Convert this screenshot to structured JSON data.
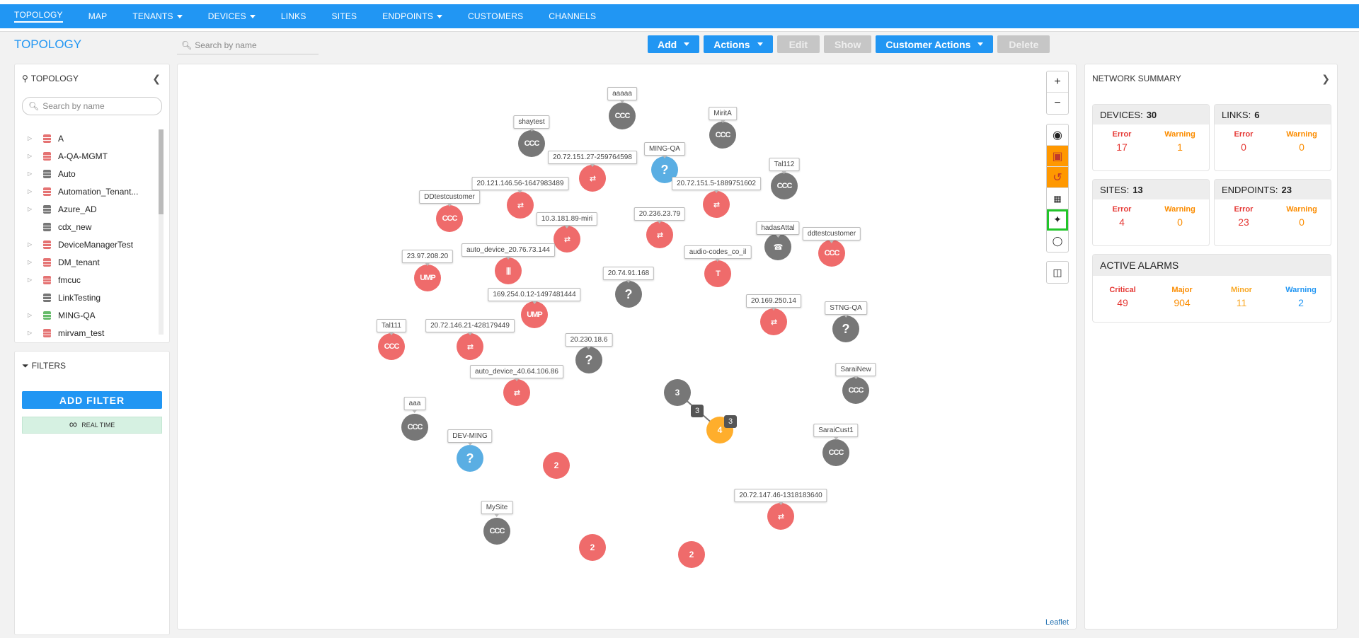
{
  "nav": {
    "items": [
      {
        "label": "TOPOLOGY",
        "dropdown": false,
        "active": true
      },
      {
        "label": "MAP",
        "dropdown": false
      },
      {
        "label": "TENANTS",
        "dropdown": true
      },
      {
        "label": "DEVICES",
        "dropdown": true
      },
      {
        "label": "LINKS",
        "dropdown": false
      },
      {
        "label": "SITES",
        "dropdown": false
      },
      {
        "label": "ENDPOINTS",
        "dropdown": true
      },
      {
        "label": "CUSTOMERS",
        "dropdown": false
      },
      {
        "label": "CHANNELS",
        "dropdown": false
      }
    ]
  },
  "header": {
    "title": "TOPOLOGY",
    "search_placeholder": "Search by name"
  },
  "toolbar": {
    "add": "Add",
    "actions": "Actions",
    "edit": "Edit",
    "show": "Show",
    "customer_actions": "Customer Actions",
    "delete": "Delete"
  },
  "tree": {
    "title": "TOPOLOGY",
    "search_placeholder": "Search by name",
    "items": [
      {
        "label": "A",
        "color": "red",
        "expandable": true
      },
      {
        "label": "A-QA-MGMT",
        "color": "red",
        "expandable": true
      },
      {
        "label": "Auto",
        "color": "gray",
        "expandable": true
      },
      {
        "label": "Automation_Tenant...",
        "color": "red",
        "expandable": true
      },
      {
        "label": "Azure_AD",
        "color": "gray",
        "expandable": true
      },
      {
        "label": "cdx_new",
        "color": "gray",
        "expandable": false
      },
      {
        "label": "DeviceManagerTest",
        "color": "red",
        "expandable": true
      },
      {
        "label": "DM_tenant",
        "color": "red",
        "expandable": true
      },
      {
        "label": "fmcuc",
        "color": "red",
        "expandable": true
      },
      {
        "label": "LinkTesting",
        "color": "gray",
        "expandable": false
      },
      {
        "label": "MING-QA",
        "color": "green",
        "expandable": true
      },
      {
        "label": "mirvam_test",
        "color": "red",
        "expandable": true
      }
    ]
  },
  "filters": {
    "title": "FILTERS",
    "add_filter": "ADD FILTER",
    "realtime": "REAL TIME"
  },
  "map": {
    "attribution": "Leaflet",
    "controls": [
      "zoom-in",
      "zoom-out",
      "locate",
      "save",
      "undo",
      "grid",
      "magic-wand",
      "hide",
      "layout"
    ],
    "nodes": [
      {
        "label": "aaaaa",
        "color": "gray",
        "glyph": "CCC"
      },
      {
        "label": "shaytest",
        "color": "gray",
        "glyph": "CCC"
      },
      {
        "label": "MiritA",
        "color": "gray",
        "glyph": "CCC"
      },
      {
        "label": "MING-QA",
        "color": "blue",
        "glyph": "?"
      },
      {
        "label": "20.72.151.27-259764598",
        "color": "red",
        "glyph": "⇄"
      },
      {
        "label": "Tal112",
        "color": "gray",
        "glyph": "CCC"
      },
      {
        "label": "20.121.146.56-1647983489",
        "color": "red",
        "glyph": "⇄"
      },
      {
        "label": "20.72.151.5-1889751602",
        "color": "red",
        "glyph": "⇄"
      },
      {
        "label": "DDtestcustomer",
        "color": "red",
        "glyph": "CCC"
      },
      {
        "label": "10.3.181.89-miri",
        "color": "red",
        "glyph": "⇄"
      },
      {
        "label": "20.236.23.79",
        "color": "red",
        "glyph": "⇄"
      },
      {
        "label": "hadasAttal",
        "color": "gray",
        "glyph": "☎"
      },
      {
        "label": "ddtestcustomer",
        "color": "red",
        "glyph": "CCC"
      },
      {
        "label": "auto_device_20.76.73.144",
        "color": "red",
        "glyph": "|||"
      },
      {
        "label": "23.97.208.20",
        "color": "red",
        "glyph": "UMP"
      },
      {
        "label": "audio-codes_co_il",
        "color": "red",
        "glyph": "T"
      },
      {
        "label": "20.74.91.168",
        "color": "gray",
        "glyph": "?"
      },
      {
        "label": "169.254.0.12-1497481444",
        "color": "red",
        "glyph": "UMP"
      },
      {
        "label": "20.169.250.14",
        "color": "red",
        "glyph": "⇄"
      },
      {
        "label": "STNG-QA",
        "color": "gray",
        "glyph": "?"
      },
      {
        "label": "Tal111",
        "color": "red",
        "glyph": "CCC"
      },
      {
        "label": "20.72.146.21-428179449",
        "color": "red",
        "glyph": "⇄"
      },
      {
        "label": "20.230.18.6",
        "color": "gray",
        "glyph": "?"
      },
      {
        "label": "auto_device_40.64.106.86",
        "color": "red",
        "glyph": "⇄"
      },
      {
        "label": "SaraiNew",
        "color": "gray",
        "glyph": "CCC"
      },
      {
        "label": "aaa",
        "color": "gray",
        "glyph": "CCC"
      },
      {
        "label": "SaraiCust1",
        "color": "gray",
        "glyph": "CCC"
      },
      {
        "label": "DEV-MING",
        "color": "blue",
        "glyph": "?"
      },
      {
        "label": "20.72.147.46-1318183640",
        "color": "red",
        "glyph": "⇄"
      },
      {
        "label": "MySite",
        "color": "gray",
        "glyph": "CCC"
      }
    ],
    "clusters": [
      {
        "count": "3",
        "color": "gray"
      },
      {
        "count": "4",
        "color": "orange"
      },
      {
        "count": "2",
        "color": "red"
      },
      {
        "count": "2",
        "color": "red"
      },
      {
        "count": "2",
        "color": "red"
      }
    ],
    "link_badges": [
      "3",
      "3"
    ]
  },
  "summary": {
    "title": "NETWORK SUMMARY",
    "devices": {
      "label": "DEVICES:",
      "count": "30",
      "error_label": "Error",
      "error": "17",
      "warning_label": "Warning",
      "warning": "1"
    },
    "links": {
      "label": "LINKS:",
      "count": "6",
      "error_label": "Error",
      "error": "0",
      "warning_label": "Warning",
      "warning": "0"
    },
    "sites": {
      "label": "SITES:",
      "count": "13",
      "error_label": "Error",
      "error": "4",
      "warning_label": "Warning",
      "warning": "0"
    },
    "endpoints": {
      "label": "ENDPOINTS:",
      "count": "23",
      "error_label": "Error",
      "error": "23",
      "warning_label": "Warning",
      "warning": "0"
    },
    "alarms": {
      "title": "ACTIVE ALARMS",
      "critical_label": "Critical",
      "critical": "49",
      "major_label": "Major",
      "major": "904",
      "minor_label": "Minor",
      "minor": "11",
      "warning_label": "Warning",
      "warning": "2"
    }
  }
}
